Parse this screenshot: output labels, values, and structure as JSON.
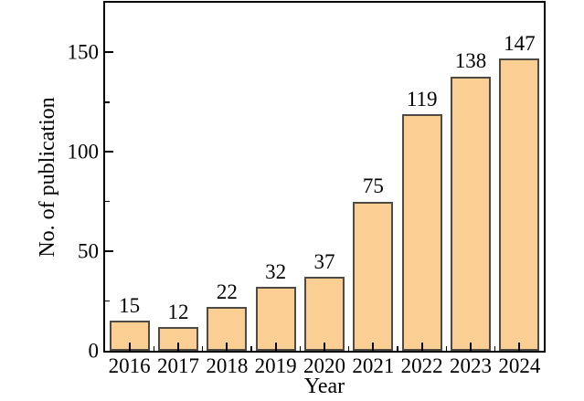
{
  "chart_data": {
    "type": "bar",
    "categories": [
      "2016",
      "2017",
      "2018",
      "2019",
      "2020",
      "2021",
      "2022",
      "2023",
      "2024"
    ],
    "values": [
      15,
      12,
      22,
      32,
      37,
      75,
      119,
      138,
      147
    ],
    "title": "",
    "xlabel": "Year",
    "ylabel": "No. of publication",
    "ylim": [
      0,
      175
    ],
    "yticks_major": [
      0,
      50,
      100,
      150
    ],
    "yticks_minor": [
      25,
      75,
      125
    ],
    "grid": false,
    "legend_position": null,
    "bar_fill": "#FBCE93",
    "bar_border": "#4E4A44",
    "axis_color": "#000000",
    "text_color": "#000000"
  }
}
